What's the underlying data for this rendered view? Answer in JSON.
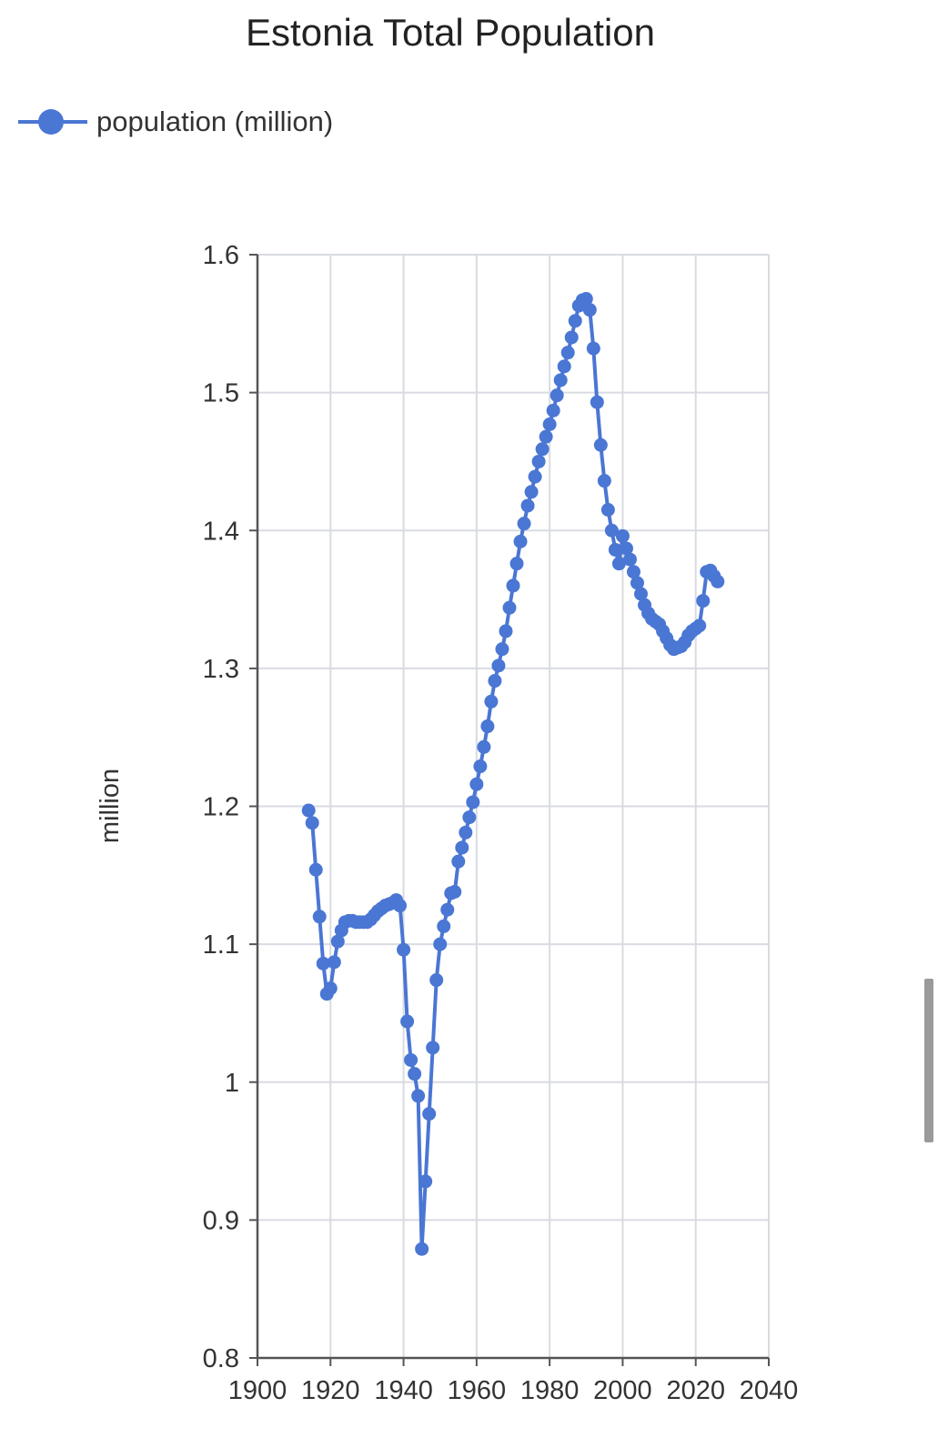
{
  "accent_color": "#4a76d4",
  "chart_data": {
    "type": "line",
    "title": "Estonia Total Population",
    "xlabel": "",
    "ylabel": "million",
    "legend_position": "top-left",
    "grid": true,
    "xlim": [
      1900,
      2040
    ],
    "ylim": [
      0.8,
      1.6
    ],
    "x_ticks": [
      1900,
      1920,
      1940,
      1960,
      1980,
      2000,
      2020,
      2040
    ],
    "y_ticks": [
      0.8,
      0.9,
      1,
      1.1,
      1.2,
      1.3,
      1.4,
      1.5,
      1.6
    ],
    "y_tick_labels": [
      "0.8",
      "0.9",
      "1",
      "1.1",
      "1.2",
      "1.3",
      "1.4",
      "1.5",
      "1.6"
    ],
    "series": [
      {
        "name": "population (million)",
        "color": "#4a76d4",
        "x": [
          1914,
          1915,
          1916,
          1917,
          1918,
          1919,
          1920,
          1921,
          1922,
          1923,
          1924,
          1925,
          1926,
          1927,
          1928,
          1929,
          1930,
          1931,
          1932,
          1933,
          1934,
          1935,
          1936,
          1937,
          1938,
          1939,
          1940,
          1941,
          1942,
          1943,
          1944,
          1945,
          1946,
          1947,
          1948,
          1949,
          1950,
          1951,
          1952,
          1953,
          1954,
          1955,
          1956,
          1957,
          1958,
          1959,
          1960,
          1961,
          1962,
          1963,
          1964,
          1965,
          1966,
          1967,
          1968,
          1969,
          1970,
          1971,
          1972,
          1973,
          1974,
          1975,
          1976,
          1977,
          1978,
          1979,
          1980,
          1981,
          1982,
          1983,
          1984,
          1985,
          1986,
          1987,
          1988,
          1989,
          1990,
          1991,
          1992,
          1993,
          1994,
          1995,
          1996,
          1997,
          1998,
          1999,
          2000,
          2001,
          2002,
          2003,
          2004,
          2005,
          2006,
          2007,
          2008,
          2009,
          2010,
          2011,
          2012,
          2013,
          2014,
          2015,
          2016,
          2017,
          2018,
          2019,
          2020,
          2021,
          2022,
          2023,
          2024,
          2025,
          2026
        ],
        "y": [
          1.197,
          1.188,
          1.154,
          1.12,
          1.086,
          1.064,
          1.068,
          1.087,
          1.102,
          1.11,
          1.116,
          1.117,
          1.117,
          1.116,
          1.116,
          1.116,
          1.116,
          1.118,
          1.121,
          1.124,
          1.126,
          1.128,
          1.129,
          1.13,
          1.132,
          1.128,
          1.096,
          1.044,
          1.016,
          1.006,
          0.99,
          0.879,
          0.928,
          0.977,
          1.025,
          1.074,
          1.1,
          1.113,
          1.125,
          1.137,
          1.138,
          1.16,
          1.17,
          1.181,
          1.192,
          1.203,
          1.216,
          1.229,
          1.243,
          1.258,
          1.276,
          1.291,
          1.302,
          1.314,
          1.327,
          1.344,
          1.36,
          1.376,
          1.392,
          1.405,
          1.418,
          1.428,
          1.439,
          1.45,
          1.459,
          1.468,
          1.477,
          1.487,
          1.498,
          1.509,
          1.519,
          1.529,
          1.54,
          1.552,
          1.563,
          1.567,
          1.568,
          1.56,
          1.532,
          1.493,
          1.462,
          1.436,
          1.415,
          1.4,
          1.386,
          1.376,
          1.396,
          1.387,
          1.379,
          1.37,
          1.362,
          1.354,
          1.346,
          1.34,
          1.336,
          1.334,
          1.332,
          1.327,
          1.322,
          1.317,
          1.314,
          1.315,
          1.316,
          1.319,
          1.324,
          1.327,
          1.329,
          1.331,
          1.349,
          1.37,
          1.371,
          1.367,
          1.363
        ]
      }
    ]
  }
}
